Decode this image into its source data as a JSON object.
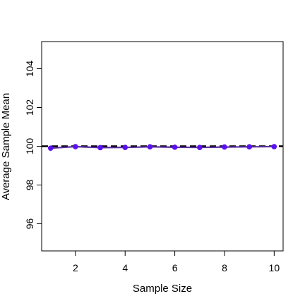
{
  "chart_data": {
    "type": "line",
    "title": "",
    "xlabel": "Sample Size",
    "ylabel": "Average Sample Mean",
    "xlim": [
      0.64,
      10.36
    ],
    "ylim": [
      94.6,
      105.4
    ],
    "x_ticks": [
      2,
      4,
      6,
      8,
      10
    ],
    "y_ticks": [
      96,
      98,
      100,
      102,
      104
    ],
    "grid": false,
    "legend": "none",
    "reference_line": {
      "y": 100,
      "style": "dashed",
      "color": "#000000"
    },
    "series": [
      {
        "x": [
          1,
          2,
          3,
          4,
          5,
          6,
          7,
          8,
          9,
          10
        ],
        "values": [
          99.9,
          99.98,
          99.93,
          99.94,
          99.97,
          99.95,
          99.94,
          99.96,
          99.97,
          99.98
        ],
        "line_color": "#5a2fa0",
        "marker_color": "#5b10f0"
      }
    ]
  }
}
